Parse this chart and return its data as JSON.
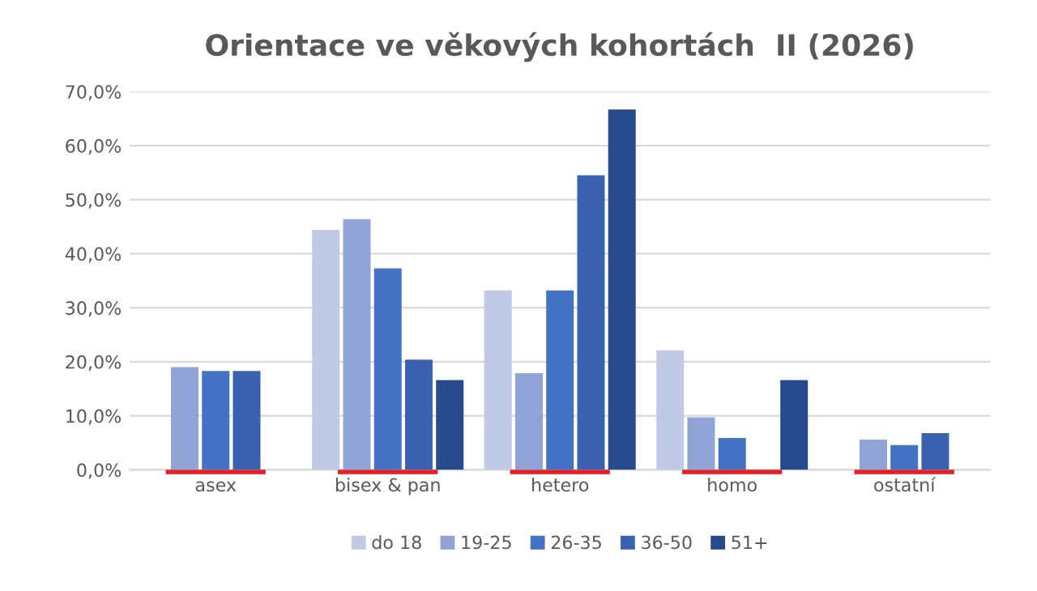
{
  "chart_data": {
    "type": "bar",
    "title": "Orientace ve věkových kohortách  II (2026)",
    "categories": [
      "asex",
      "bisex & pan",
      "hetero",
      "homo",
      "ostatní"
    ],
    "series": [
      {
        "name": "do 18",
        "color": "#c0c9e6",
        "values": [
          null,
          44.4,
          33.2,
          22.1,
          null
        ]
      },
      {
        "name": "19-25",
        "color": "#8fa3d6",
        "values": [
          19.0,
          46.4,
          17.9,
          9.7,
          5.6
        ]
      },
      {
        "name": "26-35",
        "color": "#4472c4",
        "values": [
          18.3,
          37.3,
          33.2,
          5.9,
          4.6
        ]
      },
      {
        "name": "36-50",
        "color": "#3b62b0",
        "values": [
          18.3,
          20.4,
          54.5,
          null,
          6.8
        ]
      },
      {
        "name": "51+",
        "color": "#264a8c",
        "values": [
          null,
          16.6,
          66.7,
          16.6,
          null
        ]
      }
    ],
    "ylim": [
      0,
      70
    ],
    "yticks": [
      {
        "value": 0,
        "label": "0,0%"
      },
      {
        "value": 10,
        "label": "10,0%"
      },
      {
        "value": 20,
        "label": "20,0%"
      },
      {
        "value": 30,
        "label": "30,0%"
      },
      {
        "value": 40,
        "label": "40,0%"
      },
      {
        "value": 50,
        "label": "50,0%"
      },
      {
        "value": 60,
        "label": "60,0%"
      },
      {
        "value": 70,
        "label": "70,0%"
      }
    ],
    "grid": "y",
    "legend": "bottom"
  }
}
